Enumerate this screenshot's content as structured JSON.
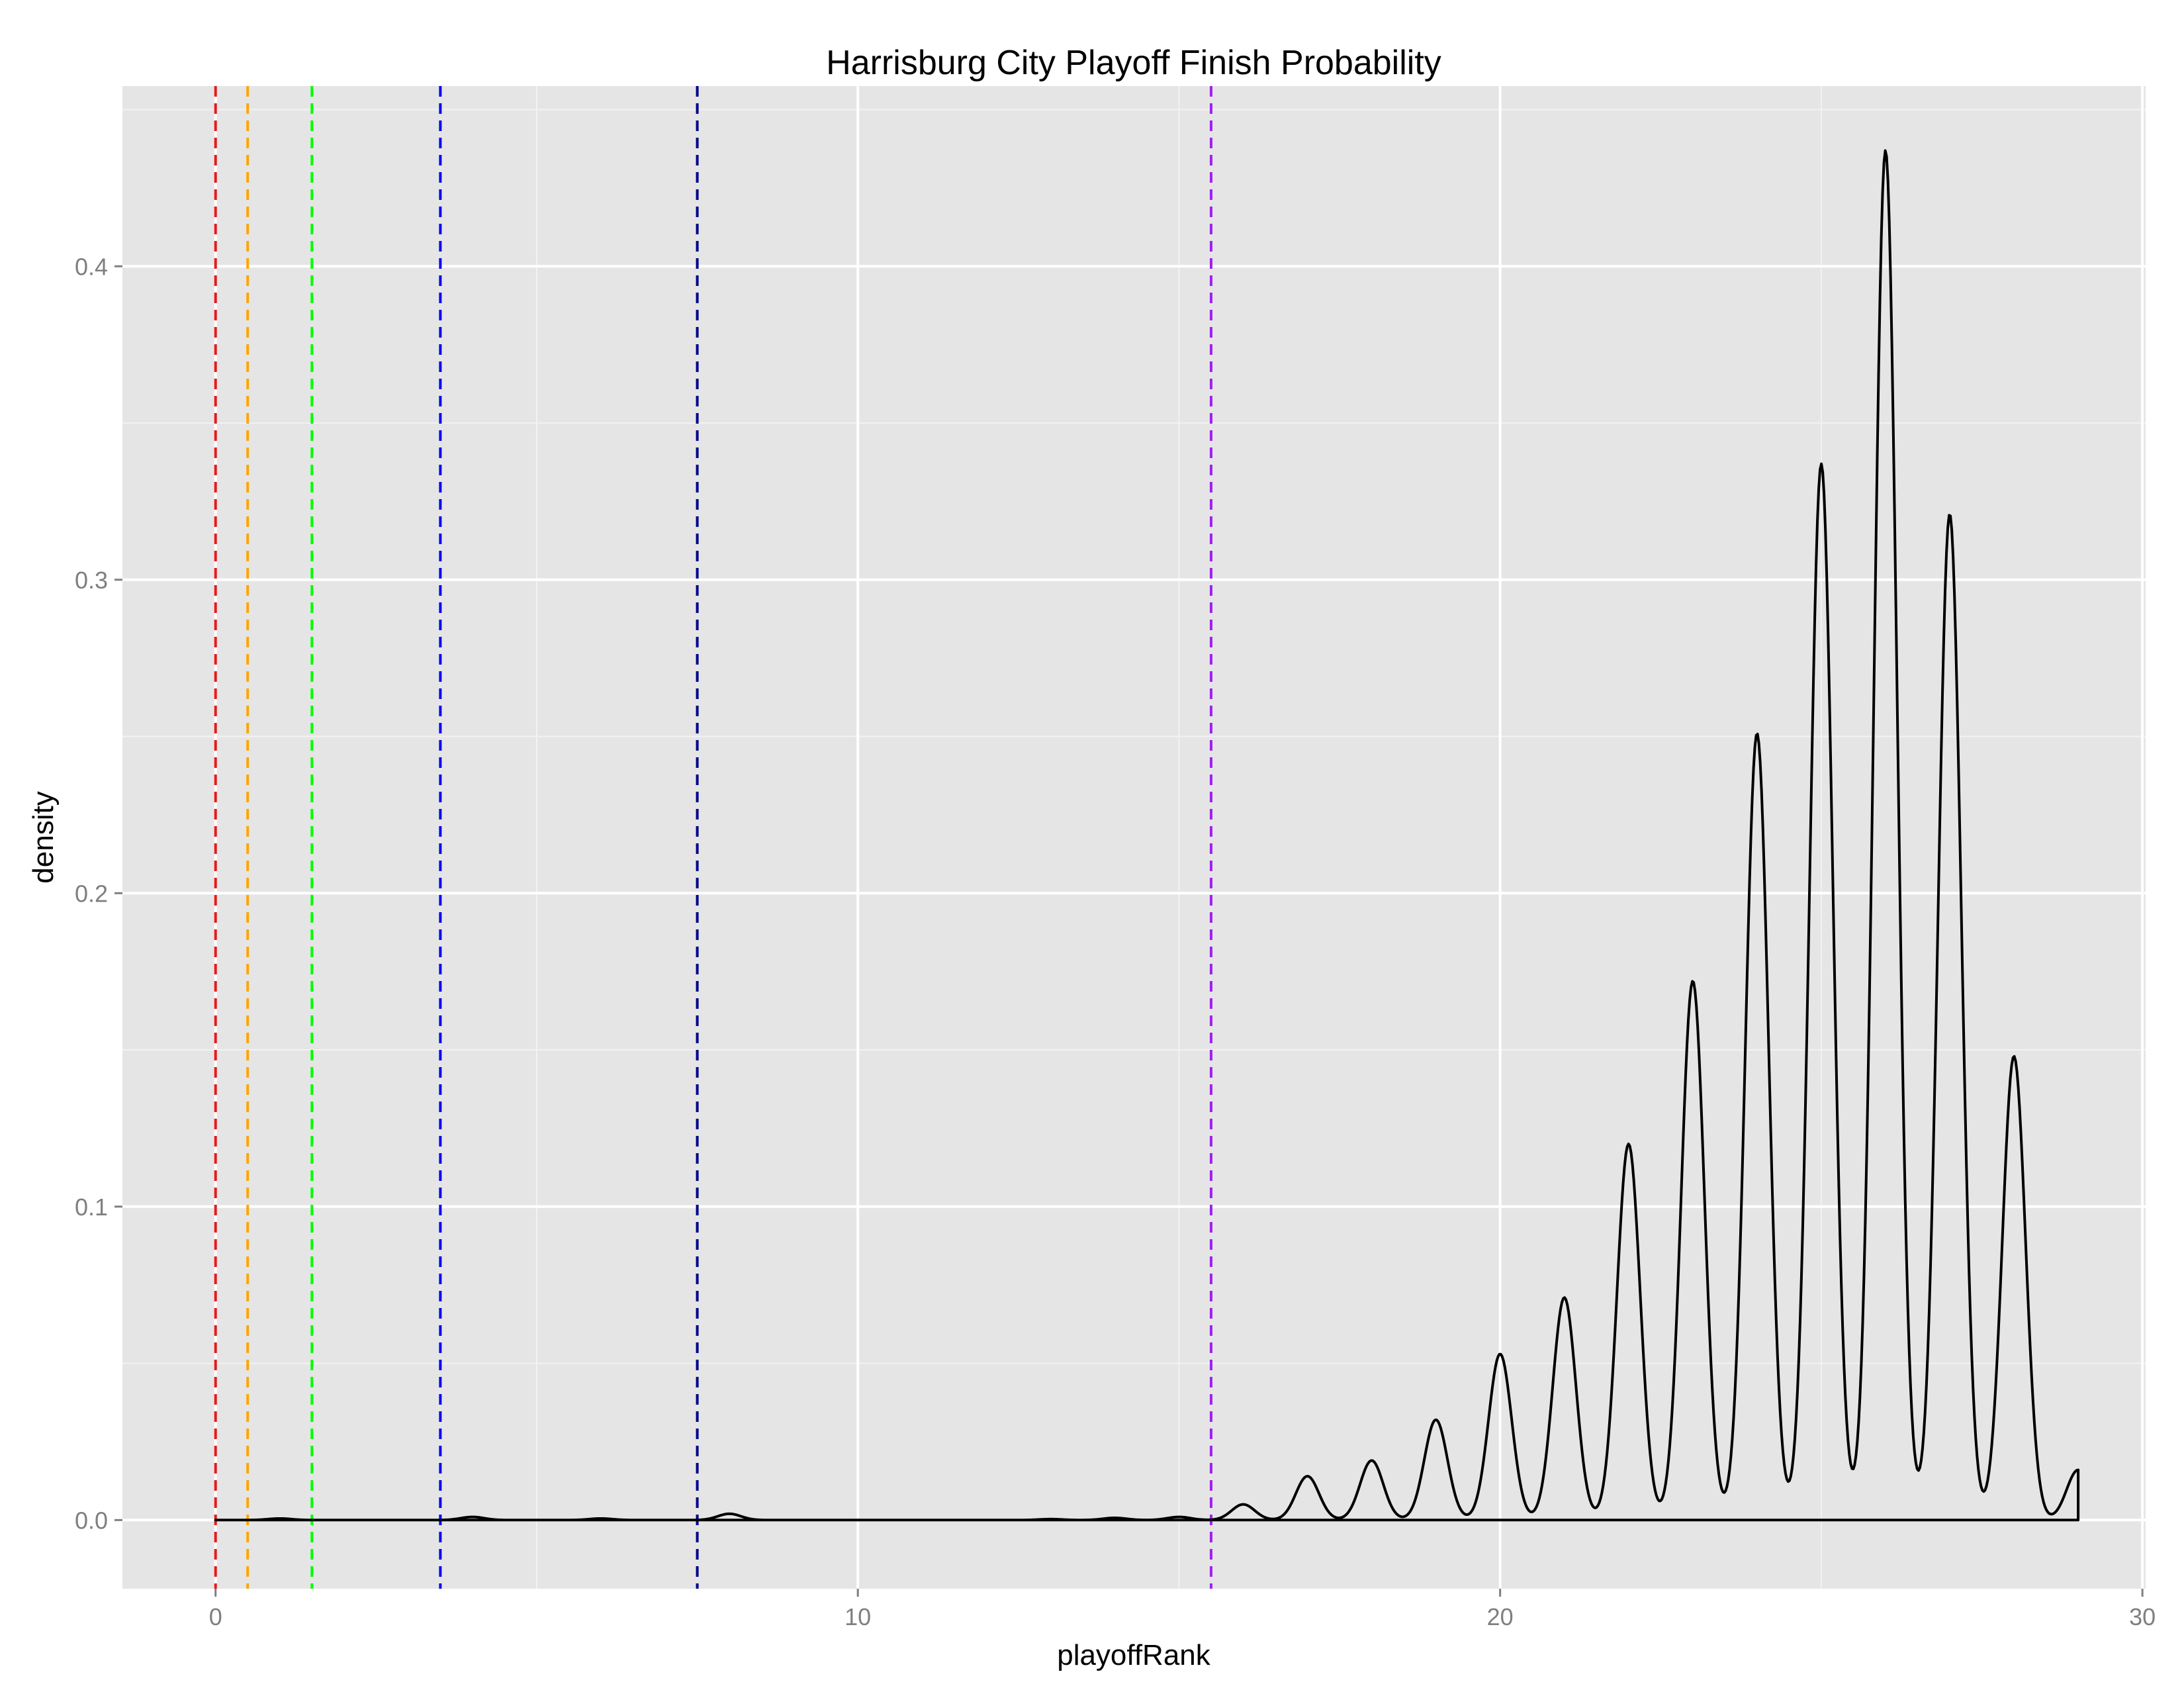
{
  "chart_data": {
    "type": "line",
    "title": "Harrisburg City Playoff Finish Probability",
    "xlabel": "playoffRank",
    "ylabel": "density",
    "xlim": [
      -1.45,
      30.05
    ],
    "ylim": [
      -0.0219,
      0.4575
    ],
    "x_ticks": [
      0,
      10,
      20,
      30
    ],
    "x_tick_labels": [
      "0",
      "10",
      "20",
      "30"
    ],
    "y_ticks": [
      0.0,
      0.1,
      0.2,
      0.3,
      0.4
    ],
    "y_tick_labels": [
      "0.0",
      "0.1",
      "0.2",
      "0.3",
      "0.4"
    ],
    "grid": true,
    "background": "#e5e5e5",
    "grid_color": "#ffffff",
    "density": {
      "x_range": [
        0,
        29
      ],
      "bandwidth": 0.18,
      "line_color": "#000000",
      "peaks": [
        {
          "x": 1,
          "y": 0.0005
        },
        {
          "x": 4,
          "y": 0.001
        },
        {
          "x": 6,
          "y": 0.0005
        },
        {
          "x": 8,
          "y": 0.002
        },
        {
          "x": 13,
          "y": 0.0003
        },
        {
          "x": 14,
          "y": 0.0007
        },
        {
          "x": 15,
          "y": 0.001
        },
        {
          "x": 16,
          "y": 0.005
        },
        {
          "x": 17,
          "y": 0.014
        },
        {
          "x": 18,
          "y": 0.019
        },
        {
          "x": 19,
          "y": 0.032
        },
        {
          "x": 20,
          "y": 0.053
        },
        {
          "x": 21,
          "y": 0.071
        },
        {
          "x": 22,
          "y": 0.12
        },
        {
          "x": 23,
          "y": 0.172
        },
        {
          "x": 24,
          "y": 0.251
        },
        {
          "x": 25,
          "y": 0.337
        },
        {
          "x": 26,
          "y": 0.437
        },
        {
          "x": 27,
          "y": 0.321
        },
        {
          "x": 28,
          "y": 0.148
        },
        {
          "x": 29,
          "y": 0.016
        }
      ]
    },
    "vlines": [
      {
        "x": 0,
        "color": "#e41a1c"
      },
      {
        "x": 0.5,
        "color": "#ffa500"
      },
      {
        "x": 1.5,
        "color": "#00ff00"
      },
      {
        "x": 3.5,
        "color": "#0000ff"
      },
      {
        "x": 7.5,
        "color": "#00008b"
      },
      {
        "x": 15.5,
        "color": "#a020f0"
      }
    ]
  }
}
